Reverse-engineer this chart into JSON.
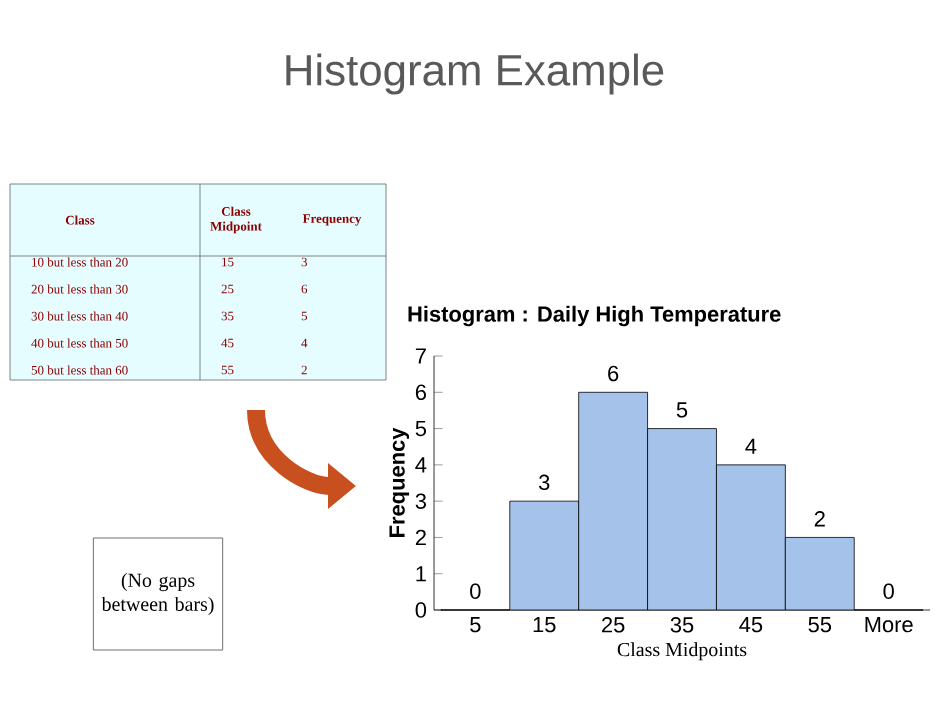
{
  "chart_data": {
    "type": "bar",
    "title": "Histogram Example",
    "subtitle": "Histogram : Daily High Temperature",
    "xlabel": "Class Midpoints",
    "ylabel": "Frequency",
    "categories": [
      "5",
      "15",
      "25",
      "35",
      "45",
      "55",
      "More"
    ],
    "values": [
      0,
      3,
      6,
      5,
      4,
      2,
      0
    ],
    "color": "#a4c2ea",
    "ylim": [
      0,
      7
    ],
    "yticks": [
      0,
      1,
      2,
      3,
      4,
      5,
      6,
      7
    ],
    "data_labels": true,
    "grid": false,
    "annotations": [
      "Class",
      "Class Midpoint",
      "Frequency",
      "10 but less than 20",
      "15",
      "3",
      "20 but less than 30",
      "25",
      "6",
      "30 but less than 40",
      "35",
      "5",
      "40 but less than 50",
      "45",
      "4",
      "50 but less than 60",
      "55",
      "2",
      "(No gaps between bars)"
    ]
  }
}
